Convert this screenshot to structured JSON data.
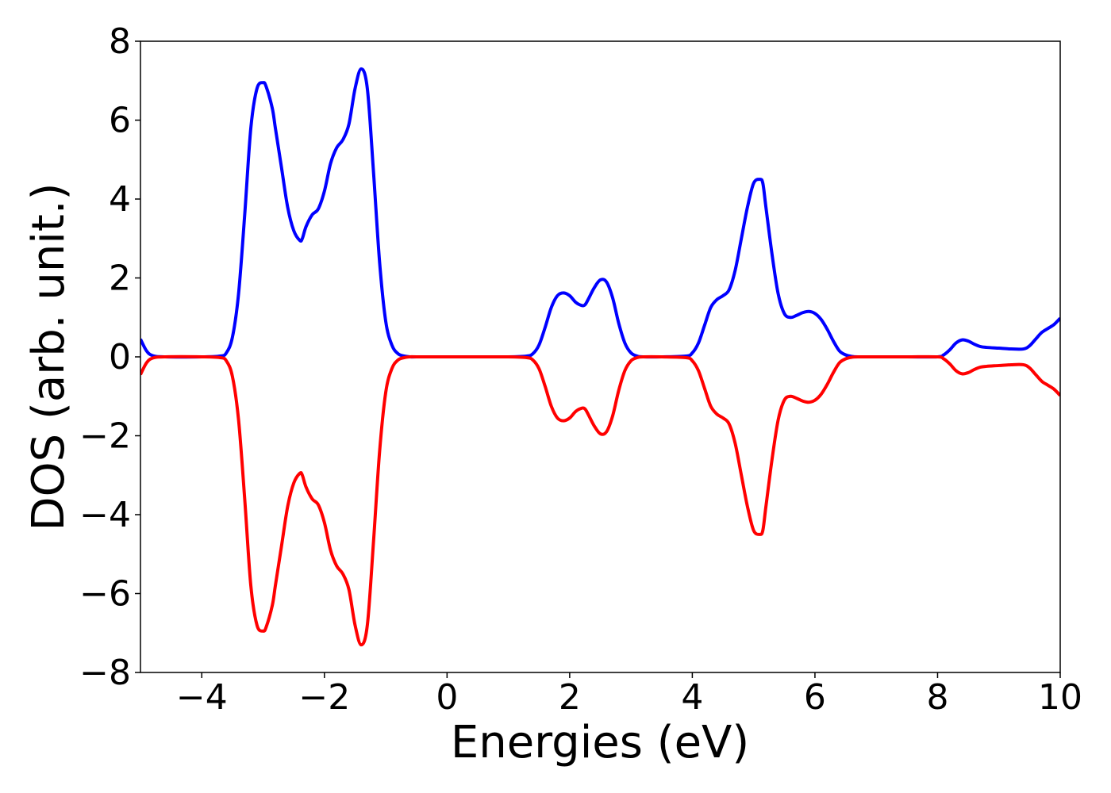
{
  "chart_data": {
    "type": "line",
    "title": "",
    "xlabel": "Energies (eV)",
    "ylabel": "DOS (arb. unit.)",
    "xlim": [
      -5,
      10
    ],
    "ylim": [
      -8,
      8
    ],
    "x_ticks": [
      -4,
      -2,
      0,
      2,
      4,
      6,
      8,
      10
    ],
    "x_tick_labels": [
      "−4",
      "−2",
      "0",
      "2",
      "4",
      "6",
      "8",
      "10"
    ],
    "y_ticks": [
      -8,
      -6,
      -4,
      -2,
      0,
      2,
      4,
      6,
      8
    ],
    "y_tick_labels": [
      "−8",
      "−6",
      "−4",
      "−2",
      "0",
      "2",
      "4",
      "6",
      "8"
    ],
    "grid": false,
    "legend": "none",
    "series": [
      {
        "color": "#0000ff",
        "x": [
          -5.0,
          -4.9,
          -4.8,
          -4.6,
          -4.0,
          -3.7,
          -3.6,
          -3.5,
          -3.4,
          -3.3,
          -3.2,
          -3.1,
          -3.0,
          -2.95,
          -2.85,
          -2.8,
          -2.7,
          -2.6,
          -2.5,
          -2.4,
          -2.36,
          -2.3,
          -2.2,
          -2.1,
          -2.0,
          -1.9,
          -1.8,
          -1.7,
          -1.6,
          -1.5,
          -1.4,
          -1.3,
          -1.2,
          -1.1,
          -1.0,
          -0.9,
          -0.8,
          -0.7,
          -0.6,
          -0.5,
          0.0,
          1.0,
          1.3,
          1.4,
          1.5,
          1.6,
          1.7,
          1.8,
          1.9,
          2.0,
          2.1,
          2.2,
          2.25,
          2.3,
          2.4,
          2.5,
          2.6,
          2.7,
          2.8,
          2.9,
          3.0,
          3.1,
          3.2,
          3.5,
          3.9,
          4.0,
          4.1,
          4.2,
          4.3,
          4.4,
          4.5,
          4.6,
          4.7,
          4.8,
          4.9,
          5.0,
          5.1,
          5.15,
          5.2,
          5.3,
          5.4,
          5.5,
          5.6,
          5.7,
          5.8,
          5.9,
          6.0,
          6.1,
          6.2,
          6.3,
          6.4,
          6.5,
          6.6,
          6.7,
          7.0,
          7.5,
          8.0,
          8.1,
          8.2,
          8.3,
          8.4,
          8.5,
          8.6,
          8.7,
          8.8,
          9.0,
          9.2,
          9.4,
          9.5,
          9.6,
          9.7,
          9.8,
          9.9,
          10.0
        ],
        "values": [
          0.45,
          0.15,
          0.03,
          0.0,
          0.0,
          0.02,
          0.1,
          0.5,
          1.6,
          3.6,
          5.8,
          6.8,
          6.95,
          6.85,
          6.3,
          5.8,
          4.8,
          3.8,
          3.2,
          2.95,
          3.0,
          3.3,
          3.6,
          3.75,
          4.2,
          4.9,
          5.3,
          5.5,
          5.9,
          6.8,
          7.3,
          6.8,
          4.7,
          2.4,
          0.9,
          0.3,
          0.08,
          0.02,
          0.0,
          0.0,
          0.0,
          0.0,
          0.02,
          0.08,
          0.3,
          0.75,
          1.25,
          1.55,
          1.62,
          1.55,
          1.38,
          1.3,
          1.32,
          1.45,
          1.75,
          1.95,
          1.9,
          1.5,
          0.85,
          0.35,
          0.1,
          0.02,
          0.0,
          0.0,
          0.02,
          0.1,
          0.35,
          0.8,
          1.25,
          1.45,
          1.55,
          1.7,
          2.2,
          3.0,
          3.8,
          4.4,
          4.5,
          4.4,
          3.8,
          2.6,
          1.6,
          1.1,
          1.0,
          1.05,
          1.12,
          1.15,
          1.1,
          0.95,
          0.7,
          0.4,
          0.15,
          0.05,
          0.01,
          0.0,
          0.0,
          0.0,
          0.0,
          0.05,
          0.18,
          0.35,
          0.43,
          0.4,
          0.32,
          0.26,
          0.24,
          0.22,
          0.2,
          0.2,
          0.28,
          0.45,
          0.62,
          0.72,
          0.82,
          0.98
        ]
      },
      {
        "color": "#ff0000",
        "x": [
          -5.0,
          -4.9,
          -4.8,
          -4.6,
          -4.0,
          -3.7,
          -3.6,
          -3.5,
          -3.4,
          -3.3,
          -3.2,
          -3.1,
          -3.0,
          -2.95,
          -2.85,
          -2.8,
          -2.7,
          -2.6,
          -2.5,
          -2.4,
          -2.36,
          -2.3,
          -2.2,
          -2.1,
          -2.0,
          -1.9,
          -1.8,
          -1.7,
          -1.6,
          -1.5,
          -1.4,
          -1.3,
          -1.2,
          -1.1,
          -1.0,
          -0.9,
          -0.8,
          -0.7,
          -0.6,
          -0.5,
          0.0,
          1.0,
          1.3,
          1.4,
          1.5,
          1.6,
          1.7,
          1.8,
          1.9,
          2.0,
          2.1,
          2.2,
          2.25,
          2.3,
          2.4,
          2.5,
          2.6,
          2.7,
          2.8,
          2.9,
          3.0,
          3.1,
          3.2,
          3.5,
          3.9,
          4.0,
          4.1,
          4.2,
          4.3,
          4.4,
          4.5,
          4.6,
          4.7,
          4.8,
          4.9,
          5.0,
          5.1,
          5.15,
          5.2,
          5.3,
          5.4,
          5.5,
          5.6,
          5.7,
          5.8,
          5.9,
          6.0,
          6.1,
          6.2,
          6.3,
          6.4,
          6.5,
          6.6,
          6.7,
          7.0,
          7.5,
          8.0,
          8.1,
          8.2,
          8.3,
          8.4,
          8.5,
          8.6,
          8.7,
          8.8,
          9.0,
          9.2,
          9.4,
          9.5,
          9.6,
          9.7,
          9.8,
          9.9,
          10.0
        ],
        "values": [
          -0.45,
          -0.15,
          -0.03,
          0.0,
          0.0,
          -0.02,
          -0.1,
          -0.5,
          -1.6,
          -3.6,
          -5.8,
          -6.8,
          -6.95,
          -6.85,
          -6.3,
          -5.8,
          -4.8,
          -3.8,
          -3.2,
          -2.95,
          -3.0,
          -3.3,
          -3.6,
          -3.75,
          -4.2,
          -4.9,
          -5.3,
          -5.5,
          -5.9,
          -6.8,
          -7.3,
          -6.8,
          -4.7,
          -2.4,
          -0.9,
          -0.3,
          -0.08,
          -0.02,
          0.0,
          0.0,
          0.0,
          0.0,
          -0.02,
          -0.08,
          -0.3,
          -0.75,
          -1.25,
          -1.55,
          -1.62,
          -1.55,
          -1.38,
          -1.3,
          -1.32,
          -1.45,
          -1.75,
          -1.95,
          -1.9,
          -1.5,
          -0.85,
          -0.35,
          -0.1,
          -0.02,
          0.0,
          0.0,
          -0.02,
          -0.1,
          -0.35,
          -0.8,
          -1.25,
          -1.45,
          -1.55,
          -1.7,
          -2.2,
          -3.0,
          -3.8,
          -4.4,
          -4.5,
          -4.4,
          -3.8,
          -2.6,
          -1.6,
          -1.1,
          -1.0,
          -1.05,
          -1.12,
          -1.15,
          -1.1,
          -0.95,
          -0.7,
          -0.4,
          -0.15,
          -0.05,
          -0.01,
          0.0,
          0.0,
          0.0,
          0.0,
          -0.05,
          -0.18,
          -0.35,
          -0.43,
          -0.4,
          -0.32,
          -0.26,
          -0.24,
          -0.22,
          -0.2,
          -0.2,
          -0.28,
          -0.45,
          -0.62,
          -0.72,
          -0.82,
          -0.98
        ]
      }
    ]
  }
}
